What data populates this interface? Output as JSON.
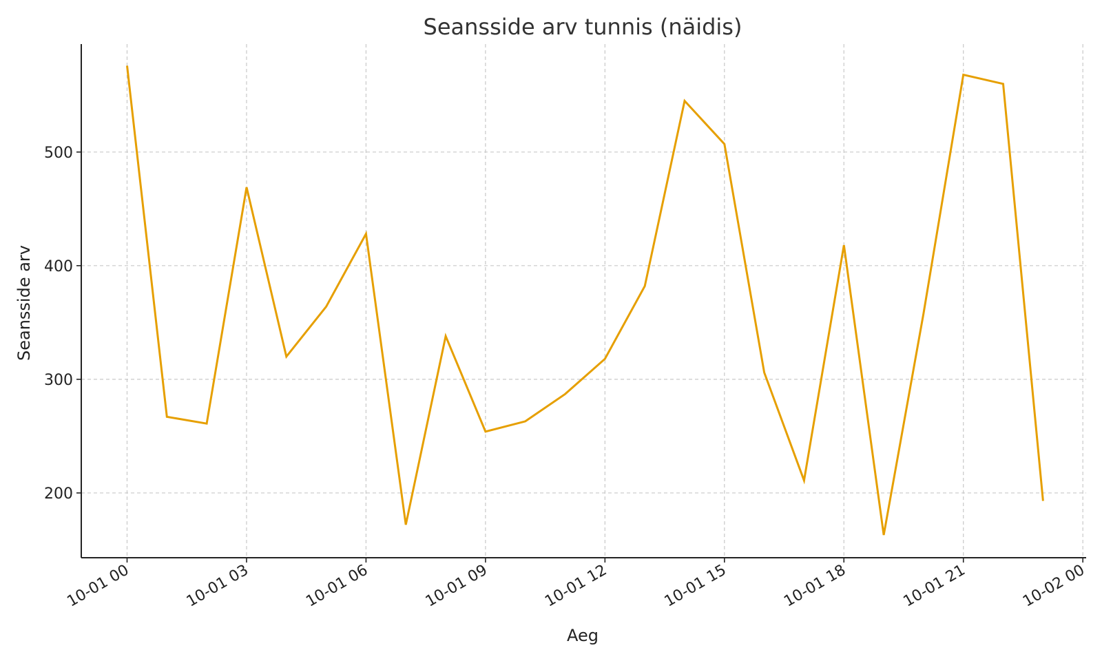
{
  "chart_data": {
    "type": "line",
    "title": "Seansside arv tunnis (näidis)",
    "xlabel": "Aeg",
    "ylabel": "Seansside arv",
    "x": [
      "2024-10-01 00:00",
      "2024-10-01 01:00",
      "2024-10-01 02:00",
      "2024-10-01 03:00",
      "2024-10-01 04:00",
      "2024-10-01 05:00",
      "2024-10-01 06:00",
      "2024-10-01 07:00",
      "2024-10-01 08:00",
      "2024-10-01 09:00",
      "2024-10-01 10:00",
      "2024-10-01 11:00",
      "2024-10-01 12:00",
      "2024-10-01 13:00",
      "2024-10-01 14:00",
      "2024-10-01 15:00",
      "2024-10-01 16:00",
      "2024-10-01 17:00",
      "2024-10-01 18:00",
      "2024-10-01 19:00",
      "2024-10-01 20:00",
      "2024-10-01 21:00",
      "2024-10-01 22:00",
      "2024-10-01 23:00"
    ],
    "series": [
      {
        "values": [
          576,
          267,
          261,
          469,
          320,
          364,
          428,
          172,
          338,
          254,
          263,
          287,
          318,
          382,
          545,
          507,
          306,
          211,
          418,
          163,
          358,
          568,
          560,
          193
        ],
        "color": "#e69f00"
      }
    ],
    "xlim": [
      "2024-09-30 22:51",
      "2024-10-02 00:05"
    ],
    "ylim": [
      143,
      595
    ],
    "x_tick_labels": [
      "10-01 00",
      "10-01 03",
      "10-01 06",
      "10-01 09",
      "10-01 12",
      "10-01 15",
      "10-01 18",
      "10-01 21",
      "10-02 00"
    ],
    "x_ticks": [
      "2024-10-01 00:00",
      "2024-10-01 03:00",
      "2024-10-01 06:00",
      "2024-10-01 09:00",
      "2024-10-01 12:00",
      "2024-10-01 15:00",
      "2024-10-01 18:00",
      "2024-10-01 21:00",
      "2024-10-02 00:00"
    ],
    "y_ticks": [
      200,
      300,
      400,
      500
    ],
    "grid": true,
    "axis_color": "#222222",
    "grid_color": "#c8c8c8"
  }
}
